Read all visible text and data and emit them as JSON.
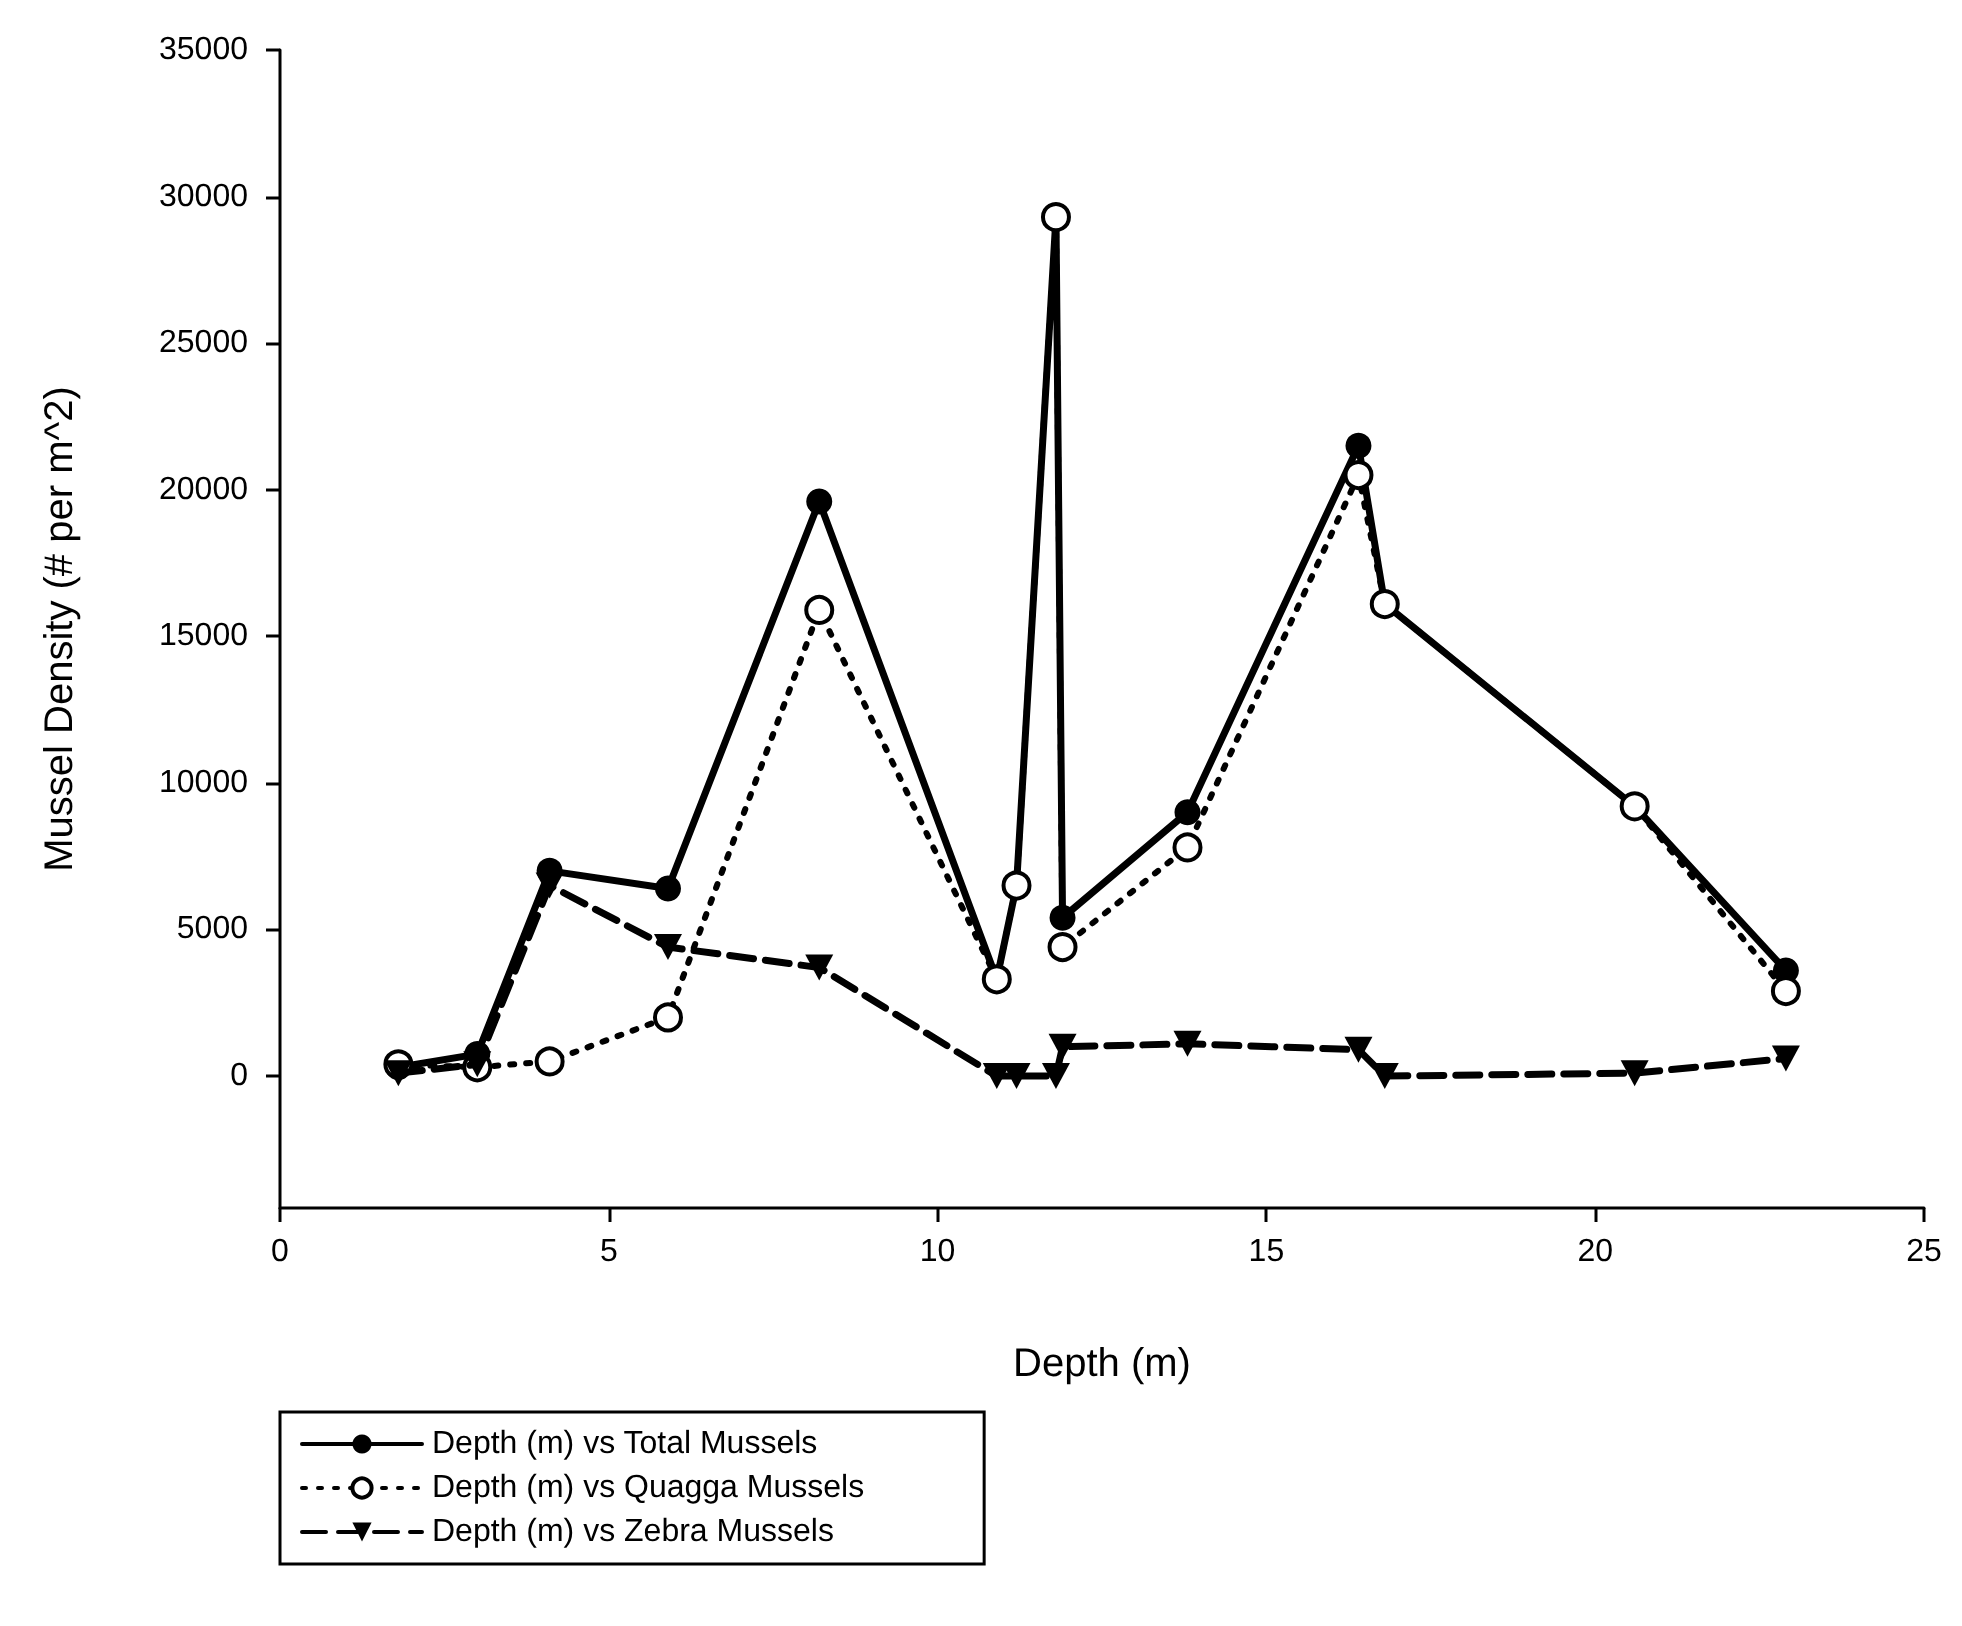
{
  "chart_data": {
    "type": "line",
    "xlabel": "Depth (m)",
    "ylabel": "Mussel Density (# per m^2)",
    "xlim": [
      0,
      25
    ],
    "xticks": [
      0,
      5,
      10,
      15,
      20,
      25
    ],
    "ylim": [
      -4500,
      35000
    ],
    "yticks": [
      0,
      5000,
      10000,
      15000,
      20000,
      25000,
      30000,
      35000
    ],
    "grid": false,
    "legend": "bottom left",
    "series": [
      {
        "name": "Depth (m) vs Total Mussels",
        "color": "#000000",
        "marker": "circle",
        "line_style": "solid",
        "x": [
          1.8,
          3.0,
          4.1,
          5.9,
          8.2,
          10.9,
          11.2,
          11.8,
          11.9,
          13.8,
          16.4,
          16.8,
          20.6,
          22.9
        ],
        "values": [
          300,
          750,
          7000,
          6400,
          19600,
          3300,
          6500,
          29300,
          5400,
          9000,
          21500,
          16100,
          9200,
          3600
        ]
      },
      {
        "name": "Depth (m) vs Quagga Mussels",
        "color": "#000000",
        "marker": "circle-open",
        "line_style": "dotted",
        "x": [
          1.8,
          3.0,
          4.1,
          5.9,
          8.2,
          10.9,
          11.2,
          11.8,
          11.9,
          13.8,
          16.4,
          16.8,
          20.6,
          22.9
        ],
        "values": [
          400,
          300,
          500,
          2000,
          15900,
          3300,
          6500,
          29300,
          4400,
          7800,
          20500,
          16100,
          9200,
          2900
        ]
      },
      {
        "name": "Depth (m) vs Zebra Mussels",
        "color": "#000000",
        "marker": "triangle-down",
        "line_style": "dashed",
        "x": [
          1.8,
          3.0,
          4.1,
          5.9,
          8.2,
          10.9,
          11.2,
          11.8,
          11.9,
          13.8,
          16.4,
          16.8,
          20.6,
          22.9
        ],
        "values": [
          100,
          400,
          6500,
          4400,
          3700,
          0,
          0,
          0,
          1000,
          1100,
          900,
          0,
          100,
          600
        ]
      }
    ]
  }
}
